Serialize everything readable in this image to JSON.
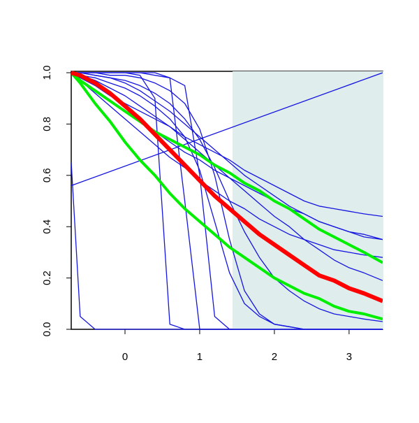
{
  "chart_data": {
    "type": "line",
    "xlim": [
      -0.72,
      3.45
    ],
    "ylim": [
      0,
      1
    ],
    "xticks": [
      0,
      1,
      2,
      3
    ],
    "yticks": [
      {
        "value": 0,
        "label": "0.0"
      },
      {
        "value": 0.2,
        "label": "0.2"
      },
      {
        "value": 0.4,
        "label": "0.4"
      },
      {
        "value": 0.6,
        "label": "0.6"
      },
      {
        "value": 0.8,
        "label": "0.8"
      },
      {
        "value": 1,
        "label": "1.0"
      }
    ],
    "shaded_region": {
      "x": [
        1.44,
        3.45
      ],
      "y": [
        0,
        1
      ],
      "color": "#dfeded"
    },
    "reference_line": {
      "x": [
        -0.72,
        3.45
      ],
      "values": [
        0.56,
        1.0
      ],
      "color": "#1515e0"
    },
    "x": [
      -0.72,
      -0.6,
      -0.4,
      -0.2,
      0,
      0.2,
      0.4,
      0.6,
      0.8,
      1.0,
      1.2,
      1.4,
      1.6,
      1.8,
      2.0,
      2.2,
      2.4,
      2.6,
      2.8,
      3.0,
      3.2,
      3.45
    ],
    "series": [
      {
        "color": "#1515e0",
        "lwd": 1.3,
        "values": [
          1,
          0.98,
          0.95,
          0.91,
          0.88,
          0.85,
          0.82,
          0.79,
          0.75,
          0.72,
          0.69,
          0.66,
          0.62,
          0.59,
          0.56,
          0.53,
          0.5,
          0.48,
          0.47,
          0.46,
          0.45,
          0.44
        ]
      },
      {
        "color": "#1515e0",
        "lwd": 1.3,
        "values": [
          1,
          0.97,
          0.93,
          0.89,
          0.85,
          0.81,
          0.77,
          0.73,
          0.69,
          0.66,
          0.62,
          0.59,
          0.56,
          0.53,
          0.5,
          0.47,
          0.45,
          0.42,
          0.4,
          0.38,
          0.37,
          0.35
        ]
      },
      {
        "color": "#1515e0",
        "lwd": 1.3,
        "values": [
          1,
          0.97,
          0.92,
          0.87,
          0.82,
          0.77,
          0.72,
          0.67,
          0.63,
          0.58,
          0.54,
          0.5,
          0.47,
          0.43,
          0.4,
          0.37,
          0.35,
          0.33,
          0.31,
          0.3,
          0.29,
          0.28
        ]
      },
      {
        "color": "#1515e0",
        "lwd": 1.3,
        "values": [
          1,
          1,
          1,
          1,
          1,
          1,
          0.99,
          0.98,
          0.95,
          0.6,
          0.05,
          0,
          0,
          0,
          0,
          0,
          0,
          0,
          0,
          0,
          0,
          0
        ]
      },
      {
        "color": "#1515e0",
        "lwd": 1.3,
        "values": [
          1,
          1,
          1,
          0.99,
          0.99,
          0.98,
          0.96,
          0.93,
          0.88,
          0.78,
          0.6,
          0.35,
          0.15,
          0.06,
          0.02,
          0.01,
          0,
          0,
          0,
          0,
          0,
          0
        ]
      },
      {
        "color": "#1515e0",
        "lwd": 1.3,
        "values": [
          1,
          1,
          0.99,
          0.98,
          0.97,
          0.95,
          0.92,
          0.88,
          0.82,
          0.74,
          0.63,
          0.5,
          0.38,
          0.28,
          0.2,
          0.15,
          0.11,
          0.08,
          0.06,
          0.05,
          0.04,
          0.03
        ]
      },
      {
        "color": "#1515e0",
        "lwd": 1.3,
        "values": [
          1,
          1,
          1,
          1,
          1,
          0.99,
          0.9,
          0.02,
          0,
          0,
          0,
          0,
          0,
          0,
          0,
          0,
          0,
          0,
          0,
          0,
          0,
          0
        ]
      },
      {
        "color": "#1515e0",
        "lwd": 1.3,
        "values": [
          0.65,
          0.05,
          0,
          0,
          0,
          0,
          0,
          0,
          0,
          0,
          0,
          0,
          0,
          0,
          0,
          0,
          0,
          0,
          0,
          0,
          0,
          0
        ]
      },
      {
        "color": "#1515e0",
        "lwd": 1.3,
        "values": [
          1,
          1,
          1,
          1,
          1,
          1,
          1,
          0.98,
          0.5,
          0,
          0,
          0,
          0,
          0,
          0,
          0,
          0,
          0,
          0,
          0,
          0,
          0
        ]
      },
      {
        "color": "#1515e0",
        "lwd": 1.3,
        "values": [
          1,
          0.99,
          0.98,
          0.96,
          0.94,
          0.91,
          0.87,
          0.82,
          0.75,
          0.62,
          0.42,
          0.22,
          0.1,
          0.05,
          0.02,
          0.01,
          0,
          0,
          0,
          0,
          0,
          0
        ]
      },
      {
        "color": "#1515e0",
        "lwd": 1.3,
        "values": [
          1,
          0.99,
          0.97,
          0.94,
          0.91,
          0.87,
          0.83,
          0.79,
          0.74,
          0.69,
          0.64,
          0.59,
          0.54,
          0.49,
          0.44,
          0.4,
          0.35,
          0.31,
          0.27,
          0.24,
          0.22,
          0.19
        ]
      },
      {
        "color": "#1515e0",
        "lwd": 1.3,
        "values": [
          1,
          1,
          0.99,
          0.98,
          0.96,
          0.93,
          0.89,
          0.85,
          0.8,
          0.75,
          0.7,
          0.65,
          0.6,
          0.56,
          0.52,
          0.48,
          0.45,
          0.42,
          0.4,
          0.38,
          0.36,
          0.35
        ]
      },
      {
        "color": "#00ee00",
        "lwd": 4,
        "values": [
          1,
          0.97,
          0.93,
          0.89,
          0.85,
          0.81,
          0.77,
          0.74,
          0.71,
          0.68,
          0.64,
          0.61,
          0.57,
          0.54,
          0.5,
          0.47,
          0.43,
          0.39,
          0.36,
          0.33,
          0.3,
          0.26
        ]
      },
      {
        "color": "#00ee00",
        "lwd": 4,
        "values": [
          1,
          0.96,
          0.88,
          0.81,
          0.73,
          0.66,
          0.6,
          0.53,
          0.47,
          0.42,
          0.37,
          0.32,
          0.28,
          0.24,
          0.2,
          0.17,
          0.14,
          0.12,
          0.09,
          0.07,
          0.06,
          0.04
        ]
      },
      {
        "color": "#ff0000",
        "lwd": 6,
        "values": [
          1,
          0.99,
          0.96,
          0.92,
          0.87,
          0.82,
          0.76,
          0.7,
          0.64,
          0.58,
          0.52,
          0.47,
          0.42,
          0.37,
          0.33,
          0.29,
          0.25,
          0.21,
          0.19,
          0.16,
          0.14,
          0.11
        ]
      }
    ]
  }
}
